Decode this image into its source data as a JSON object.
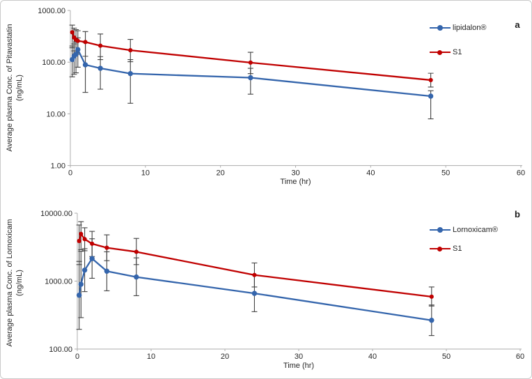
{
  "colors": {
    "blue_series": "#3465AC",
    "red_series": "#C00000",
    "error_bar": "#404040",
    "axis_line": "#ACACAC",
    "text": "#262626"
  },
  "chart_data": [
    {
      "type": "line",
      "panel_label": "a",
      "xlabel": "Time (hr)",
      "ylabel": "Average plasma Conc. of Pitavastatin (ng/mL)",
      "ylabel_lines": [
        "Average plasma Conc. of Pitavastatin",
        "(ng/mL)"
      ],
      "y_scale": "log",
      "grid": false,
      "legend_position": "top-right",
      "xlim": [
        0,
        60
      ],
      "ylim": [
        1,
        1000
      ],
      "x_ticks": [
        0,
        10,
        20,
        30,
        40,
        50,
        60
      ],
      "y_ticks": [
        {
          "value": 1000,
          "label": "1000.00"
        },
        {
          "value": 100,
          "label": "100.00"
        },
        {
          "value": 10,
          "label": "10.00"
        },
        {
          "value": 1,
          "label": "1.00"
        }
      ],
      "x": [
        0.25,
        0.5,
        0.75,
        1,
        2,
        4,
        8,
        24,
        48
      ],
      "series": [
        {
          "name": "lipidalon®",
          "color": "#3465AC",
          "marker": "circle",
          "values": [
            112,
            131,
            142,
            175,
            89,
            76,
            60,
            50,
            22
          ],
          "err_lo": [
            52,
            58,
            62,
            80,
            26,
            30,
            16,
            24,
            8
          ],
          "err_hi": [
            205,
            225,
            245,
            295,
            240,
            128,
            112,
            76,
            28
          ]
        },
        {
          "name": "S1",
          "color": "#C00000",
          "marker": "circle",
          "values": [
            378,
            300,
            272,
            258,
            245,
            208,
            170,
            98,
            45
          ],
          "err_lo": [
            190,
            165,
            150,
            142,
            130,
            112,
            102,
            60,
            33
          ],
          "err_hi": [
            520,
            455,
            425,
            405,
            390,
            350,
            275,
            155,
            61
          ]
        }
      ]
    },
    {
      "type": "line",
      "panel_label": "b",
      "xlabel": "Time (hr)",
      "ylabel": "Average plasma Conc. of Lornoxicam (ng/mL)",
      "ylabel_lines": [
        "Average plasma Conc. of Lornoxicam",
        "(ng/mL)"
      ],
      "y_scale": "log",
      "grid": false,
      "legend_position": "top-right",
      "xlim": [
        0,
        60
      ],
      "ylim": [
        100,
        10000
      ],
      "x_ticks": [
        0,
        10,
        20,
        30,
        40,
        50,
        60
      ],
      "y_ticks": [
        {
          "value": 10000,
          "label": "10000.00"
        },
        {
          "value": 1000,
          "label": "1000.00"
        },
        {
          "value": 100,
          "label": "100.00"
        }
      ],
      "x": [
        0.25,
        0.5,
        1,
        2,
        4,
        8,
        24,
        48
      ],
      "series": [
        {
          "name": "Lornoxicam®",
          "color": "#3465AC",
          "marker": "circle",
          "values": [
            620,
            900,
            1450,
            2150,
            1400,
            1150,
            660,
            265
          ],
          "err_lo": [
            195,
            290,
            700,
            1100,
            720,
            610,
            355,
            158
          ],
          "err_hi": [
            1950,
            2750,
            3000,
            4200,
            2700,
            2200,
            1230,
            445
          ]
        },
        {
          "name": "S1",
          "color": "#C00000",
          "marker": "circle",
          "values": [
            3900,
            4950,
            4150,
            3550,
            3100,
            2700,
            1230,
            590
          ],
          "err_lo": [
            1750,
            2900,
            2800,
            2300,
            2000,
            1750,
            820,
            430
          ],
          "err_hi": [
            6700,
            7500,
            6100,
            5400,
            4800,
            4250,
            1850,
            820
          ]
        }
      ]
    }
  ]
}
